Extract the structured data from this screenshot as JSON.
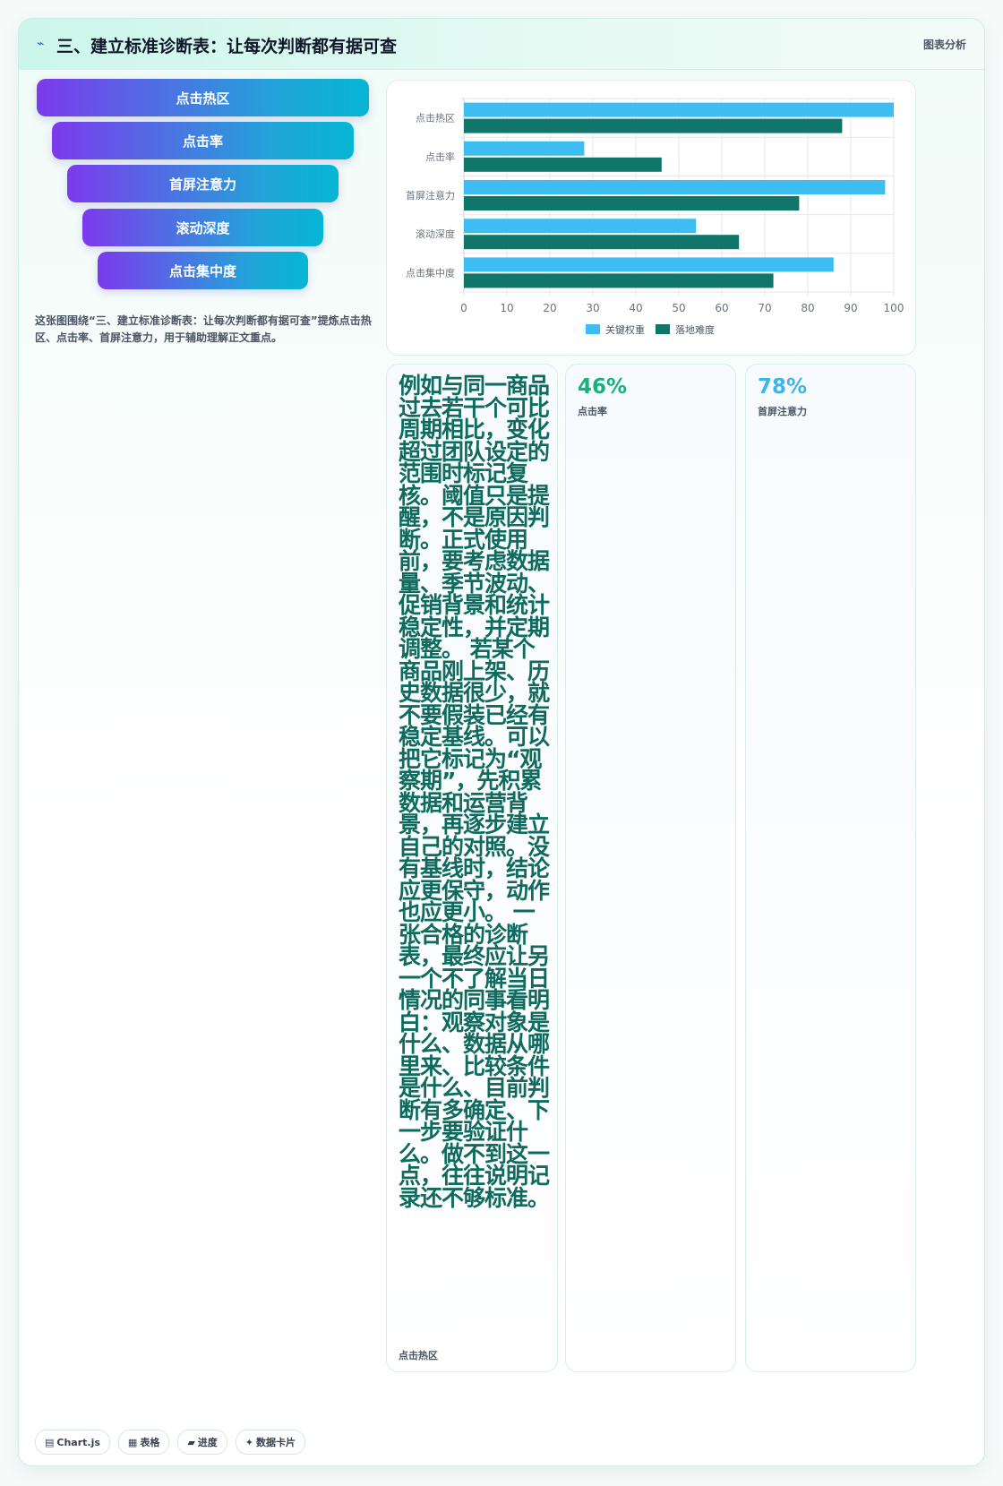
{
  "header": {
    "icon": "pulse-icon",
    "title": "三、建立标准诊断表：让每次判断都有据可查",
    "tag": "图表分析"
  },
  "funnel": {
    "items": [
      {
        "label": "点击热区"
      },
      {
        "label": "点击率"
      },
      {
        "label": "首屏注意力"
      },
      {
        "label": "滚动深度"
      },
      {
        "label": "点击集中度"
      }
    ]
  },
  "caption": "这张图围绕“三、建立标准诊断表：让每次判断都有据可查”提炼点击热区、点击率、首屏注意力，用于辅助理解正文重点。",
  "chips": [
    {
      "icon": "chart-icon",
      "glyph": "▤",
      "label": "Chart.js"
    },
    {
      "icon": "table-icon",
      "glyph": "▦",
      "label": "表格"
    },
    {
      "icon": "progress-icon",
      "glyph": "▰",
      "label": "进度"
    },
    {
      "icon": "sparkle-icon",
      "glyph": "✦",
      "label": "数据卡片"
    }
  ],
  "chart_data": {
    "type": "bar",
    "orientation": "horizontal",
    "categories": [
      "点击热区",
      "点击率",
      "首屏注意力",
      "滚动深度",
      "点击集中度"
    ],
    "series": [
      {
        "name": "关键权重",
        "values": [
          100,
          28,
          98,
          54,
          86
        ],
        "color": "#3dbdf2"
      },
      {
        "name": "落地难度",
        "values": [
          88,
          46,
          78,
          64,
          72
        ],
        "color": "#11766a"
      }
    ],
    "xlim": [
      0,
      100
    ],
    "xticks": [
      0,
      10,
      20,
      30,
      40,
      50,
      60,
      70,
      80,
      90,
      100
    ],
    "grid": true,
    "legend": "bottom"
  },
  "text_card": {
    "body": "例如与同一商品过去若干个可比周期相比，变化超过团队设定的范围时标记复核。阈值只是提醒，不是原因判断。正式使用前，要考虑数据量、季节波动、促销背景和统计稳定性，并定期调整。 若某个商品刚上架、历史数据很少，就不要假装已经有稳定基线。可以把它标记为“观察期”，先积累数据和运营背景，再逐步建立自己的对照。没有基线时，结论应更保守，动作也应更小。 一张合格的诊断表，最终应让另一个不了解当日情况的同事看明白：观察对象是什么、数据从哪里来、比较条件是什么、目前判断有多确定、下一步要验证什么。做不到这一点，往往说明记录还不够标准。",
    "label": "点击热区"
  },
  "stats": [
    {
      "value": "46%",
      "label": "点击率",
      "color": "#19b07a"
    },
    {
      "value": "78%",
      "label": "首屏注意力",
      "color": "#3db4ea"
    }
  ]
}
